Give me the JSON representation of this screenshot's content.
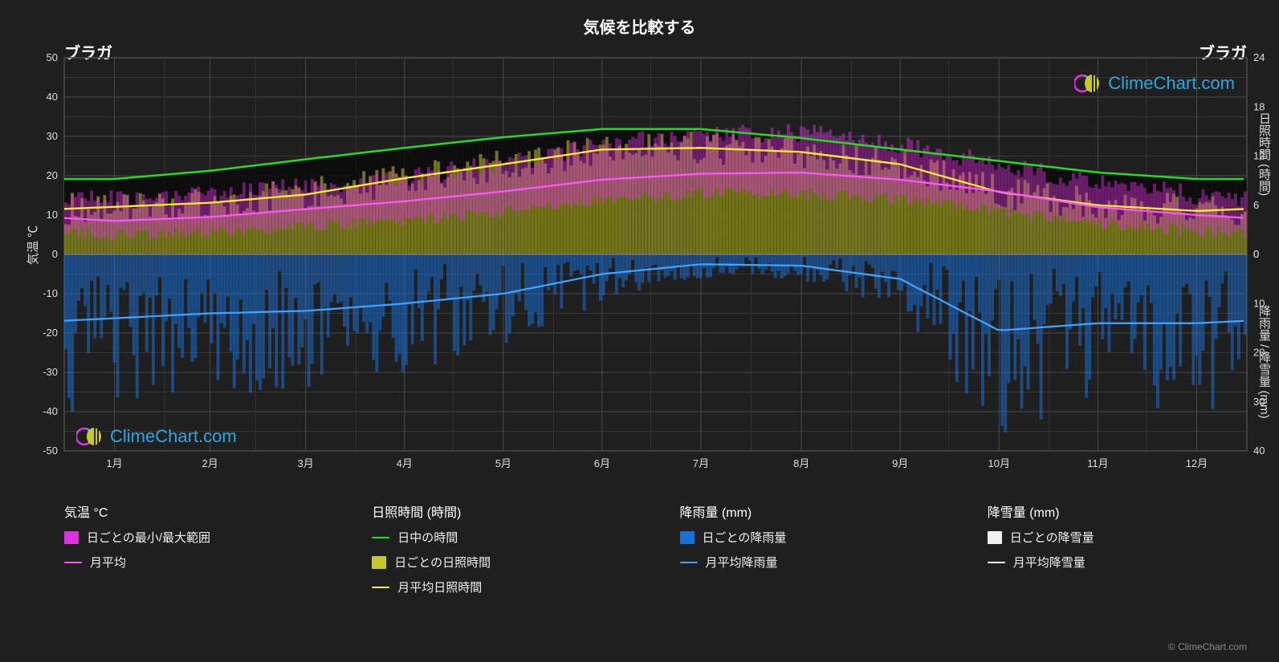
{
  "title": "気候を比較する",
  "location_left": "ブラガ",
  "location_right": "ブラガ",
  "watermark_text": "ClimeChart.com",
  "copyright": "© ClimeChart.com",
  "axis_labels": {
    "left": "気温 ℃",
    "right1": "日照時間 (時間)",
    "right2": "降雨量 / 降雪量 (mm)"
  },
  "chart": {
    "months": [
      "1月",
      "2月",
      "3月",
      "4月",
      "5月",
      "6月",
      "7月",
      "8月",
      "9月",
      "10月",
      "11月",
      "12月"
    ],
    "left_axis": {
      "min": -50,
      "max": 50,
      "step": 10
    },
    "right_axis_sun": {
      "min": 0,
      "max": 24,
      "step": 6,
      "align_with_temp": [
        0,
        50
      ]
    },
    "right_axis_rain": {
      "min": 0,
      "max": 40,
      "step": 10,
      "align_with_temp": [
        0,
        -50
      ]
    },
    "background": "#1f1f1f",
    "grid_major": "#4a4a4a",
    "grid_minor": "#353535",
    "colors": {
      "temp_range_fill": "#e030e0",
      "temp_avg_line": "#ff55ff",
      "daylight_line": "#22dd22",
      "sun_bars": "#c8c828",
      "sun_avg_line": "#ffee33",
      "rain_bars": "#1a6fd6",
      "rain_avg_line": "#3ea0ff",
      "snow_bars": "#f0f0f0",
      "snow_avg_line": "#f0f0f0",
      "daily_black": "#0a0a0a"
    },
    "series": {
      "daylight_hours": [
        9.2,
        10.2,
        11.6,
        13.0,
        14.3,
        15.3,
        15.3,
        14.2,
        12.8,
        11.4,
        10.0,
        9.2
      ],
      "sun_avg_hours": [
        5.8,
        6.3,
        7.3,
        9.3,
        11.0,
        12.8,
        13.0,
        12.5,
        11.0,
        7.6,
        6.0,
        5.3
      ],
      "temp_avg_c": [
        8.5,
        9.5,
        11.5,
        13.5,
        16.0,
        19.0,
        20.5,
        20.8,
        19.0,
        16.0,
        12.0,
        10.0
      ],
      "temp_min_c": [
        5.0,
        5.5,
        7.0,
        8.5,
        11.0,
        14.0,
        15.5,
        15.5,
        14.0,
        11.0,
        8.0,
        6.0
      ],
      "temp_max_c": [
        13.0,
        14.0,
        16.5,
        18.5,
        22.0,
        27.0,
        29.5,
        30.0,
        27.0,
        22.0,
        17.0,
        14.0
      ],
      "rain_avg_mm": [
        13.0,
        12.0,
        11.5,
        10.0,
        8.0,
        4.0,
        2.0,
        2.3,
        5.0,
        15.5,
        14.0,
        14.0
      ],
      "snow_avg_mm": [
        0,
        0,
        0,
        0,
        0,
        0,
        0,
        0,
        0,
        0,
        0,
        0
      ]
    }
  },
  "legend": {
    "col1_title": "気温 °C",
    "col1_items": [
      {
        "swatch": "rect",
        "color": "#e030e0",
        "label": "日ごとの最小/最大範囲"
      },
      {
        "swatch": "line",
        "color": "#ff55ff",
        "label": "月平均"
      }
    ],
    "col2_title": "日照時間 (時間)",
    "col2_items": [
      {
        "swatch": "line",
        "color": "#22dd22",
        "label": "日中の時間"
      },
      {
        "swatch": "rect",
        "color": "#c8c828",
        "label": "日ごとの日照時間"
      },
      {
        "swatch": "line",
        "color": "#ffee33",
        "label": "月平均日照時間"
      }
    ],
    "col3_title": "降雨量 (mm)",
    "col3_items": [
      {
        "swatch": "rect",
        "color": "#1a6fd6",
        "label": "日ごとの降雨量"
      },
      {
        "swatch": "line",
        "color": "#3ea0ff",
        "label": "月平均降雨量"
      }
    ],
    "col4_title": "降雪量 (mm)",
    "col4_items": [
      {
        "swatch": "rect",
        "color": "#f0f0f0",
        "label": "日ごとの降雪量"
      },
      {
        "swatch": "line",
        "color": "#f0f0f0",
        "label": "月平均降雪量"
      }
    ]
  }
}
